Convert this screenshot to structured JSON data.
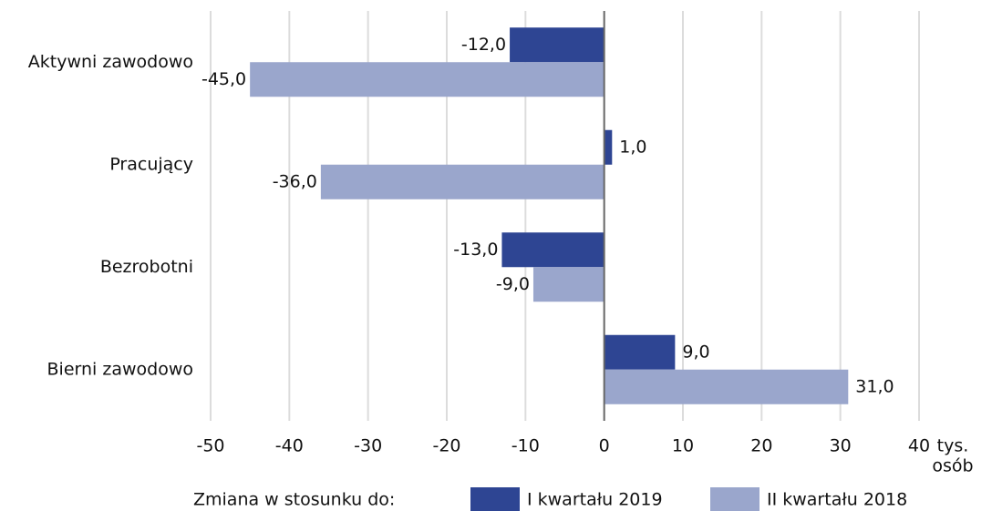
{
  "chart_data": {
    "type": "hbar",
    "categories": [
      "Aktywni zawodowo",
      "Pracujący",
      "Bezrobotni",
      "Bierni zawodowo"
    ],
    "series": [
      {
        "name": "I kwartału 2019",
        "color": "#2e4593",
        "values": [
          -12,
          1,
          -13,
          9
        ],
        "value_labels": [
          "-12,0",
          "1,0",
          "-13,0",
          "9,0"
        ]
      },
      {
        "name": "II kwartału 2018",
        "color": "#9aa6cc",
        "values": [
          -45,
          -36,
          -9,
          31
        ],
        "value_labels": [
          "-45,0",
          "-36,0",
          "-9,0",
          "31,0"
        ]
      }
    ],
    "xlim": [
      -50,
      40
    ],
    "xticks": [
      -50,
      -40,
      -30,
      -20,
      -10,
      0,
      10,
      20,
      30,
      40
    ],
    "x_unit": [
      "tys.",
      "osób"
    ],
    "legend_title": "Zmiana w stosunku do:",
    "grid": true
  }
}
